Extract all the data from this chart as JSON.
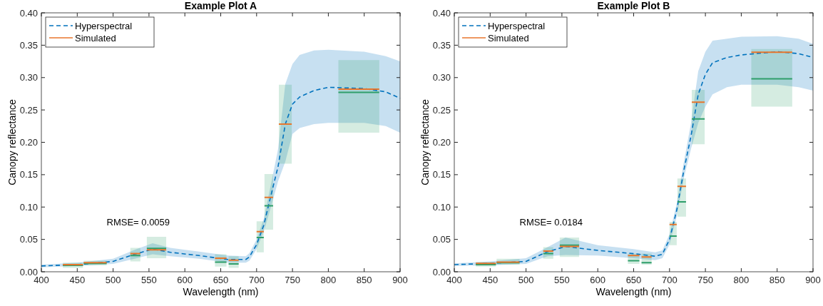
{
  "chart_data": [
    {
      "type": "line",
      "title": "Example Plot A",
      "xlabel": "Wavelength (nm)",
      "ylabel": "Canopy reflectance",
      "xlim": [
        400,
        900
      ],
      "ylim": [
        0,
        0.4
      ],
      "xticks": [
        400,
        450,
        500,
        550,
        600,
        650,
        700,
        750,
        800,
        850,
        900
      ],
      "yticks": [
        {
          "value": 0,
          "label": "0.00"
        },
        {
          "value": 0.05,
          "label": "0.05"
        },
        {
          "value": 0.1,
          "label": "0.10"
        },
        {
          "value": 0.15,
          "label": "0.15"
        },
        {
          "value": 0.2,
          "label": "0.20"
        },
        {
          "value": 0.25,
          "label": "0.25"
        },
        {
          "value": 0.3,
          "label": "0.30"
        },
        {
          "value": 0.35,
          "label": "0.35"
        },
        {
          "value": 0.4,
          "label": "0.40"
        }
      ],
      "legend": "top left",
      "grid": false,
      "annotations": [
        "RMSE= 0.0059"
      ],
      "series": [
        {
          "name": "Hyperspectral",
          "color": "#0072bd",
          "line_style": "dashed",
          "x": [
            400,
            450,
            500,
            530,
            555,
            580,
            620,
            660,
            685,
            690,
            700,
            710,
            720,
            730,
            740,
            750,
            760,
            780,
            800,
            850,
            880,
            900
          ],
          "values": [
            0.009,
            0.011,
            0.016,
            0.027,
            0.035,
            0.03,
            0.025,
            0.019,
            0.019,
            0.023,
            0.042,
            0.072,
            0.118,
            0.163,
            0.228,
            0.259,
            0.27,
            0.28,
            0.285,
            0.283,
            0.278,
            0.268
          ],
          "lower": [
            0.007,
            0.009,
            0.012,
            0.02,
            0.027,
            0.024,
            0.02,
            0.014,
            0.014,
            0.017,
            0.035,
            0.062,
            0.1,
            0.14,
            0.17,
            0.213,
            0.222,
            0.228,
            0.23,
            0.23,
            0.225,
            0.215
          ],
          "upper": [
            0.011,
            0.014,
            0.02,
            0.034,
            0.044,
            0.037,
            0.031,
            0.025,
            0.024,
            0.029,
            0.05,
            0.082,
            0.135,
            0.19,
            0.29,
            0.321,
            0.335,
            0.342,
            0.343,
            0.34,
            0.333,
            0.325
          ]
        },
        {
          "color": "#2e9e6a",
          "line_style": "solid",
          "x": [
            430,
            458,
            458.5,
            459,
            491,
            507.5,
            524,
            538,
            542.5,
            547,
            574,
            608,
            642,
            658,
            659.5,
            661,
            675,
            687.5,
            700,
            710,
            710.5,
            711,
            723,
            727,
            731,
            749,
            781.5,
            814,
            871
          ],
          "values": [
            0.01,
            0.01,
            null,
            0.013,
            0.013,
            null,
            0.025,
            0.025,
            null,
            0.036,
            0.036,
            null,
            0.015,
            0.015,
            null,
            0.012,
            0.012,
            null,
            0.053,
            0.053,
            null,
            0.102,
            0.102,
            null,
            null,
            null,
            null,
            0.277,
            0.277
          ],
          "lower": [
            0.006,
            0.006,
            null,
            0.01,
            0.01,
            null,
            0.016,
            0.016,
            null,
            0.021,
            0.021,
            null,
            0.008,
            0.008,
            null,
            0.006,
            0.006,
            null,
            0.03,
            0.03,
            null,
            0.065,
            0.065,
            null,
            0.167,
            0.167,
            null,
            0.215,
            0.215
          ],
          "upper": [
            0.014,
            0.014,
            null,
            0.017,
            0.017,
            null,
            0.037,
            0.037,
            null,
            0.054,
            0.054,
            null,
            0.027,
            0.027,
            null,
            0.024,
            0.024,
            null,
            0.078,
            0.078,
            null,
            0.151,
            0.151,
            null,
            0.289,
            0.289,
            null,
            0.327,
            0.327
          ]
        },
        {
          "name": "Simulated",
          "color": "#e8762c",
          "line_style": "solid",
          "x": [
            430,
            458,
            458.5,
            459,
            491,
            507.5,
            524,
            538,
            542.5,
            547,
            574,
            608,
            642,
            658,
            659.5,
            661,
            675,
            687.5,
            700,
            710,
            710.5,
            711,
            723,
            727,
            731,
            749,
            781.5,
            814,
            871
          ],
          "values": [
            0.011,
            0.011,
            null,
            0.014,
            0.014,
            null,
            0.028,
            0.028,
            null,
            0.034,
            0.034,
            null,
            0.021,
            0.021,
            null,
            0.018,
            0.018,
            null,
            0.062,
            0.062,
            null,
            0.115,
            0.115,
            null,
            0.228,
            0.228,
            null,
            0.282,
            0.282
          ]
        }
      ]
    },
    {
      "type": "line",
      "title": "Example Plot B",
      "xlabel": "Wavelength (nm)",
      "ylabel": "Canopy reflectance",
      "xlim": [
        400,
        900
      ],
      "ylim": [
        0,
        0.4
      ],
      "xticks": [
        400,
        450,
        500,
        550,
        600,
        650,
        700,
        750,
        800,
        850,
        900
      ],
      "yticks": [
        {
          "value": 0,
          "label": "0.00"
        },
        {
          "value": 0.05,
          "label": "0.05"
        },
        {
          "value": 0.1,
          "label": "0.10"
        },
        {
          "value": 0.15,
          "label": "0.15"
        },
        {
          "value": 0.2,
          "label": "0.20"
        },
        {
          "value": 0.25,
          "label": "0.25"
        },
        {
          "value": 0.3,
          "label": "0.30"
        },
        {
          "value": 0.35,
          "label": "0.35"
        },
        {
          "value": 0.4,
          "label": "0.40"
        }
      ],
      "legend": "top left",
      "grid": false,
      "annotations": [
        "RMSE= 0.0184"
      ],
      "series": [
        {
          "name": "Hyperspectral",
          "color": "#0072bd",
          "line_style": "dashed",
          "x": [
            400,
            450,
            500,
            530,
            555,
            600,
            650,
            680,
            690,
            700,
            710,
            720,
            730,
            740,
            750,
            760,
            780,
            800,
            850,
            880,
            900
          ],
          "values": [
            0.011,
            0.013,
            0.016,
            0.031,
            0.039,
            0.033,
            0.028,
            0.024,
            0.027,
            0.05,
            0.095,
            0.157,
            0.21,
            0.274,
            0.305,
            0.323,
            0.331,
            0.335,
            0.34,
            0.337,
            0.331
          ],
          "lower": [
            0.009,
            0.01,
            0.012,
            0.024,
            0.026,
            0.025,
            0.021,
            0.018,
            0.021,
            0.042,
            0.085,
            0.145,
            0.19,
            0.23,
            0.255,
            0.274,
            0.285,
            0.289,
            0.289,
            0.285,
            0.28
          ],
          "upper": [
            0.013,
            0.016,
            0.021,
            0.038,
            0.053,
            0.041,
            0.035,
            0.03,
            0.033,
            0.058,
            0.105,
            0.17,
            0.23,
            0.31,
            0.34,
            0.357,
            0.36,
            0.363,
            0.364,
            0.36,
            0.352
          ]
        },
        {
          "color": "#2e9e6a",
          "line_style": "solid",
          "x": [
            430,
            458,
            458.5,
            459,
            491,
            507.5,
            524,
            538,
            542.5,
            547,
            574,
            608,
            642,
            658,
            659.5,
            661,
            675,
            687.5,
            700,
            710,
            710.5,
            711,
            723,
            727,
            731,
            749,
            781.5,
            814,
            871
          ],
          "values": [
            0.011,
            0.011,
            null,
            0.014,
            0.014,
            null,
            0.028,
            0.028,
            null,
            0.041,
            0.041,
            null,
            0.017,
            0.017,
            null,
            0.014,
            0.014,
            null,
            0.055,
            0.055,
            null,
            0.108,
            0.108,
            null,
            0.236,
            0.236,
            null,
            0.298,
            0.298
          ],
          "lower": [
            0.008,
            0.008,
            null,
            0.011,
            0.011,
            null,
            0.02,
            0.02,
            null,
            0.023,
            0.023,
            null,
            0.012,
            0.012,
            null,
            0.011,
            0.011,
            null,
            0.041,
            0.041,
            null,
            0.085,
            0.085,
            null,
            0.197,
            0.197,
            null,
            0.255,
            0.255
          ],
          "upper": [
            0.015,
            0.015,
            null,
            0.02,
            0.02,
            null,
            0.038,
            0.038,
            null,
            0.053,
            0.053,
            null,
            0.028,
            0.028,
            null,
            0.028,
            0.028,
            null,
            0.077,
            0.077,
            null,
            0.144,
            0.144,
            null,
            0.281,
            0.281,
            null,
            0.344,
            0.344
          ]
        },
        {
          "name": "Simulated",
          "color": "#e8762c",
          "line_style": "solid",
          "x": [
            430,
            458,
            458.5,
            459,
            491,
            507.5,
            524,
            538,
            542.5,
            547,
            574,
            608,
            642,
            658,
            659.5,
            661,
            675,
            687.5,
            700,
            710,
            710.5,
            711,
            723,
            727,
            731,
            749,
            781.5,
            814,
            871
          ],
          "values": [
            0.013,
            0.013,
            null,
            0.015,
            0.015,
            null,
            0.032,
            0.032,
            null,
            0.039,
            0.039,
            null,
            0.025,
            0.025,
            null,
            0.023,
            0.023,
            null,
            0.073,
            0.073,
            null,
            0.132,
            0.132,
            null,
            0.262,
            0.262,
            null,
            0.339,
            0.339
          ]
        }
      ]
    }
  ]
}
